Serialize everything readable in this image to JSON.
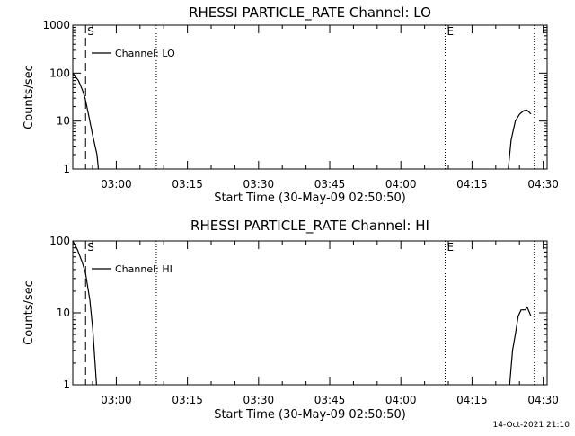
{
  "timestamp": "14-Oct-2021 21:10",
  "chart_data": [
    {
      "type": "line",
      "title": "RHESSI PARTICLE_RATE Channel: LO",
      "xlabel": "Start Time (30-May-09 02:50:50)",
      "ylabel": "Counts/sec",
      "y_scale": "log",
      "xlim_minutes": [
        0,
        100
      ],
      "ylim": [
        1,
        1000
      ],
      "x_ticks": [
        {
          "min": 9.17,
          "label": "03:00"
        },
        {
          "min": 24.17,
          "label": "03:15"
        },
        {
          "min": 39.17,
          "label": "03:30"
        },
        {
          "min": 54.17,
          "label": "03:45"
        },
        {
          "min": 69.17,
          "label": "04:00"
        },
        {
          "min": 84.17,
          "label": "04:15"
        },
        {
          "min": 99.17,
          "label": "04:30"
        }
      ],
      "y_ticks": [
        {
          "value": 1,
          "label": "1"
        },
        {
          "value": 10,
          "label": "10"
        },
        {
          "value": 100,
          "label": "100"
        },
        {
          "value": 1000,
          "label": "1000"
        }
      ],
      "series": [
        {
          "name": "Channel: LO",
          "segments": [
            [
              [
                0,
                100
              ],
              [
                1.2,
                70
              ],
              [
                2,
                45
              ],
              [
                2.6,
                30
              ],
              [
                3.3,
                14
              ],
              [
                4.2,
                5
              ],
              [
                5.1,
                2
              ],
              [
                5.4,
                1
              ]
            ],
            [
              [
                91.8,
                1
              ],
              [
                92.4,
                4
              ],
              [
                93.3,
                10
              ],
              [
                94.2,
                14
              ],
              [
                95.1,
                16.5
              ],
              [
                95.7,
                17
              ],
              [
                96.3,
                15
              ],
              [
                96.6,
                14
              ]
            ]
          ]
        }
      ],
      "markers": [
        {
          "min": 2.7,
          "style": "dashed",
          "label": "S"
        },
        {
          "min": 17.6,
          "style": "dotted",
          "label": ""
        },
        {
          "min": 78.5,
          "style": "dotted",
          "label": "E"
        },
        {
          "min": 97.3,
          "style": "dotted",
          "label": ""
        }
      ]
    },
    {
      "type": "line",
      "title": "RHESSI PARTICLE_RATE Channel: HI",
      "xlabel": "Start Time (30-May-09 02:50:50)",
      "ylabel": "Counts/sec",
      "y_scale": "log",
      "xlim_minutes": [
        0,
        100
      ],
      "ylim": [
        1,
        100
      ],
      "x_ticks": [
        {
          "min": 9.17,
          "label": "03:00"
        },
        {
          "min": 24.17,
          "label": "03:15"
        },
        {
          "min": 39.17,
          "label": "03:30"
        },
        {
          "min": 54.17,
          "label": "03:45"
        },
        {
          "min": 69.17,
          "label": "04:00"
        },
        {
          "min": 84.17,
          "label": "04:15"
        },
        {
          "min": 99.17,
          "label": "04:30"
        }
      ],
      "y_ticks": [
        {
          "value": 1,
          "label": "1"
        },
        {
          "value": 10,
          "label": "10"
        },
        {
          "value": 100,
          "label": "100"
        }
      ],
      "series": [
        {
          "name": "Channel: HI",
          "segments": [
            [
              [
                0,
                100
              ],
              [
                1,
                75
              ],
              [
                2,
                50
              ],
              [
                2.7,
                35
              ],
              [
                3.6,
                15
              ],
              [
                4.2,
                6
              ],
              [
                4.7,
                2
              ],
              [
                5,
                1
              ]
            ],
            [
              [
                92.1,
                1
              ],
              [
                92.7,
                3
              ],
              [
                93.3,
                5
              ],
              [
                93.9,
                9
              ],
              [
                94.5,
                11
              ],
              [
                95.4,
                11
              ],
              [
                95.8,
                12
              ],
              [
                96.3,
                10
              ],
              [
                96.6,
                9
              ]
            ]
          ]
        }
      ],
      "markers": [
        {
          "min": 2.7,
          "style": "dashed",
          "label": "S"
        },
        {
          "min": 17.6,
          "style": "dotted",
          "label": ""
        },
        {
          "min": 78.5,
          "style": "dotted",
          "label": "E"
        },
        {
          "min": 97.3,
          "style": "dotted",
          "label": ""
        }
      ]
    }
  ]
}
